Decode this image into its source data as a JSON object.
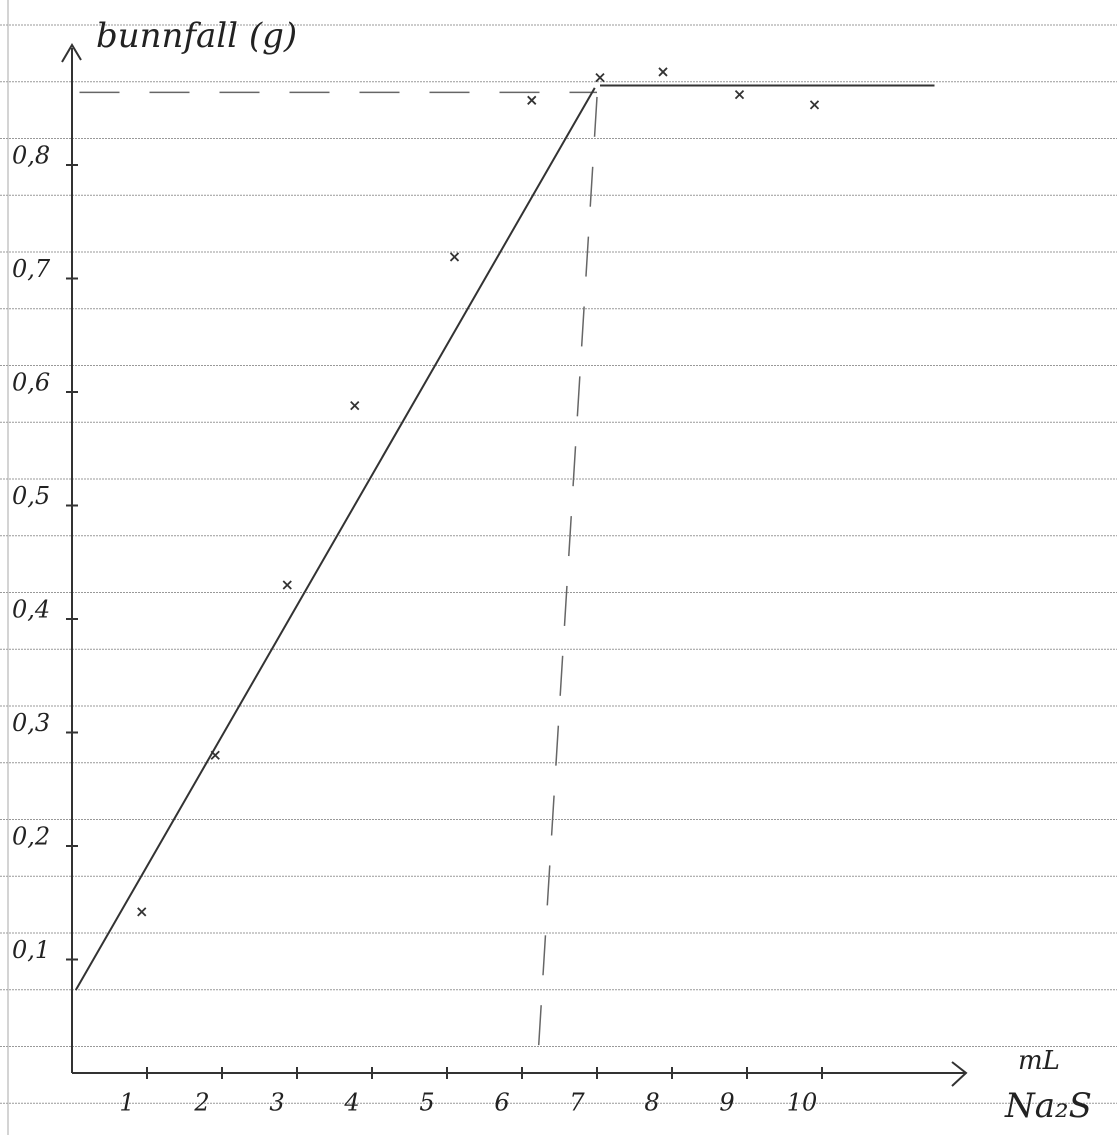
{
  "chart_data": {
    "type": "scatter",
    "y_label": "bunnfall (g)",
    "x_unit": "mL",
    "x_label": "Na₂S",
    "color": "#333333",
    "xlim": [
      0,
      12
    ],
    "ylim": [
      0,
      0.9
    ],
    "xticks": [
      1,
      2,
      3,
      4,
      5,
      6,
      7,
      8,
      9,
      10
    ],
    "yticks": [
      {
        "value": 0.1,
        "label": "0,1"
      },
      {
        "value": 0.2,
        "label": "0,2"
      },
      {
        "value": 0.3,
        "label": "0,3"
      },
      {
        "value": 0.4,
        "label": "0,4"
      },
      {
        "value": 0.5,
        "label": "0,5"
      },
      {
        "value": 0.6,
        "label": "0,6"
      },
      {
        "value": 0.7,
        "label": "0,7"
      },
      {
        "value": 0.8,
        "label": "0,8"
      }
    ],
    "x": [
      0.93,
      1.91,
      2.87,
      3.77,
      5.1,
      6.13,
      7.04,
      7.88,
      8.9,
      9.9
    ],
    "values": [
      0.142,
      0.28,
      0.43,
      0.588,
      0.719,
      0.857,
      0.877,
      0.882,
      0.862,
      0.853
    ],
    "lines": [
      {
        "x": [
          0.05,
          6.97
        ],
        "values": [
          0.073,
          0.868
        ]
      },
      {
        "x": [
          7.04,
          11.5
        ],
        "values": [
          0.87,
          0.87
        ]
      }
    ],
    "guides": [
      {
        "x": [
          0.1,
          7
        ],
        "values": [
          0.864,
          0.864
        ]
      },
      {
        "x": [
          7,
          6.2
        ],
        "values": [
          0.86,
          0
        ]
      }
    ]
  }
}
